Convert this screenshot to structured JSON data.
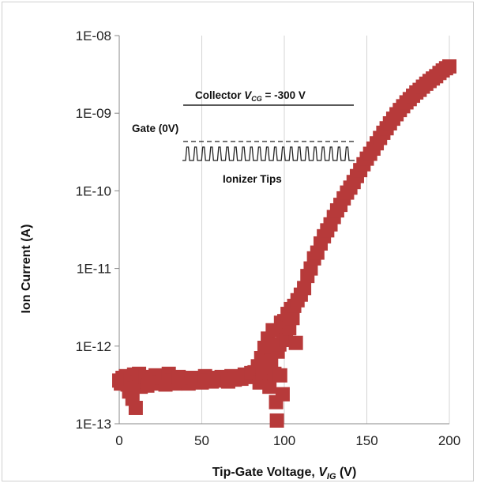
{
  "chart_data": {
    "type": "scatter",
    "xlabel": {
      "main": "Tip-Gate Voltage, ",
      "var": "V",
      "sub": "IG",
      "unit": " (V)"
    },
    "ylabel": "Ion Current (A)",
    "xlim": [
      0,
      200
    ],
    "ylim": [
      1e-13,
      1e-08
    ],
    "yscale": "log",
    "grid": "vertical",
    "x_ticks": [
      0,
      50,
      100,
      150,
      200
    ],
    "x_tick_labels": [
      "0",
      "50",
      "100",
      "150",
      "200"
    ],
    "y_ticks": [
      1e-13,
      1e-12,
      1e-11,
      1e-10,
      1e-09,
      1e-08
    ],
    "y_tick_labels": [
      "1E-13",
      "1E-12",
      "1E-11",
      "1E-10",
      "1E-09",
      "1E-08"
    ],
    "marker_color": "#b73a3a",
    "marker": "square",
    "series": [
      {
        "points": [
          [
            0,
            3.6e-13
          ],
          [
            1,
            3.3e-13
          ],
          [
            2,
            3.9e-13
          ],
          [
            3,
            3.5e-13
          ],
          [
            4,
            4.1e-13
          ],
          [
            5,
            3.2e-13
          ],
          [
            6,
            2.6e-13
          ],
          [
            7,
            3.8e-13
          ],
          [
            8,
            2.1e-13
          ],
          [
            9,
            4.3e-13
          ],
          [
            10,
            1.6e-13
          ],
          [
            11,
            3.4e-13
          ],
          [
            12,
            4.4e-13
          ],
          [
            13,
            3e-13
          ],
          [
            14,
            3.7e-13
          ],
          [
            15,
            3.5e-13
          ],
          [
            16,
            4e-13
          ],
          [
            17,
            3.1e-13
          ],
          [
            18,
            3.8e-13
          ],
          [
            20,
            3.3e-13
          ],
          [
            22,
            4.2e-13
          ],
          [
            24,
            3.4e-13
          ],
          [
            26,
            3.9e-13
          ],
          [
            28,
            3.2e-13
          ],
          [
            30,
            4.4e-13
          ],
          [
            32,
            3.6e-13
          ],
          [
            34,
            3.3e-13
          ],
          [
            36,
            4e-13
          ],
          [
            38,
            3.5e-13
          ],
          [
            40,
            3.7e-13
          ],
          [
            42,
            3.3e-13
          ],
          [
            44,
            3.9e-13
          ],
          [
            46,
            3.5e-13
          ],
          [
            48,
            3.8e-13
          ],
          [
            50,
            3.4e-13
          ],
          [
            52,
            4.1e-13
          ],
          [
            54,
            3.6e-13
          ],
          [
            56,
            3.5e-13
          ],
          [
            58,
            3.9e-13
          ],
          [
            60,
            3.6e-13
          ],
          [
            62,
            4e-13
          ],
          [
            64,
            3.7e-13
          ],
          [
            66,
            3.5e-13
          ],
          [
            68,
            4.1e-13
          ],
          [
            70,
            3.7e-13
          ],
          [
            72,
            3.9e-13
          ],
          [
            74,
            3.8e-13
          ],
          [
            76,
            4.3e-13
          ],
          [
            78,
            4e-13
          ],
          [
            80,
            4.5e-13
          ],
          [
            82,
            4.6e-13
          ],
          [
            84,
            5.5e-13
          ],
          [
            85,
            3.4e-13
          ],
          [
            86,
            7e-13
          ],
          [
            87,
            4.4e-13
          ],
          [
            88,
            9.5e-13
          ],
          [
            89,
            5.4e-13
          ],
          [
            90,
            1.25e-12
          ],
          [
            91,
            3e-13
          ],
          [
            92,
            6.5e-13
          ],
          [
            93,
            1.6e-12
          ],
          [
            94,
            4.4e-13
          ],
          [
            95,
            1.9e-13
          ],
          [
            95.5,
            1.1e-13
          ],
          [
            96,
            8.5e-13
          ],
          [
            97,
            1.05e-12
          ],
          [
            97.5,
            4.2e-13
          ],
          [
            98,
            2e-12
          ],
          [
            99,
            2.4e-13
          ],
          [
            99.5,
            1.5e-12
          ],
          [
            100,
            2.1e-12
          ],
          [
            101,
            1.2e-12
          ],
          [
            102,
            2.6e-12
          ],
          [
            103,
            1.7e-12
          ],
          [
            104,
            3e-12
          ],
          [
            105,
            2.3e-12
          ],
          [
            106,
            3.3e-12
          ],
          [
            107,
            1.1e-12
          ],
          [
            108,
            3.9e-12
          ],
          [
            110,
            4.6e-12
          ],
          [
            112,
            5.6e-12
          ],
          [
            114,
            8e-12
          ],
          [
            116,
            1e-11
          ],
          [
            118,
            1.35e-11
          ],
          [
            120,
            1.6e-11
          ],
          [
            122,
            2.1e-11
          ],
          [
            124,
            2.6e-11
          ],
          [
            126,
            3.1e-11
          ],
          [
            128,
            3.7e-11
          ],
          [
            130,
            4.6e-11
          ],
          [
            132,
            5.6e-11
          ],
          [
            134,
            6.6e-11
          ],
          [
            136,
            8e-11
          ],
          [
            138,
            9.5e-11
          ],
          [
            140,
            1.1e-10
          ],
          [
            142,
            1.3e-10
          ],
          [
            144,
            1.55e-10
          ],
          [
            146,
            1.85e-10
          ],
          [
            148,
            2.2e-10
          ],
          [
            150,
            2.6e-10
          ],
          [
            152,
            3e-10
          ],
          [
            154,
            3.5e-10
          ],
          [
            156,
            4.1e-10
          ],
          [
            158,
            4.8e-10
          ],
          [
            160,
            5.6e-10
          ],
          [
            162,
            6.4e-10
          ],
          [
            164,
            7.4e-10
          ],
          [
            166,
            8.5e-10
          ],
          [
            168,
            9.7e-10
          ],
          [
            170,
            1.1e-09
          ],
          [
            172,
            1.23e-09
          ],
          [
            174,
            1.38e-09
          ],
          [
            176,
            1.52e-09
          ],
          [
            178,
            1.68e-09
          ],
          [
            180,
            1.85e-09
          ],
          [
            182,
            2e-09
          ],
          [
            184,
            2.2e-09
          ],
          [
            186,
            2.4e-09
          ],
          [
            188,
            2.6e-09
          ],
          [
            190,
            2.8e-09
          ],
          [
            192,
            3e-09
          ],
          [
            194,
            3.3e-09
          ],
          [
            196,
            3.55e-09
          ],
          [
            198,
            3.8e-09
          ],
          [
            200,
            4e-09
          ]
        ]
      }
    ],
    "inset": {
      "collector_prefix": "Collector ",
      "collector_var": "V",
      "collector_sub": "CG",
      "collector_suffix": " = -300 V",
      "gate_label": "Gate (0V)",
      "tips_label": "Ionizer Tips",
      "tip_count": 21
    }
  }
}
